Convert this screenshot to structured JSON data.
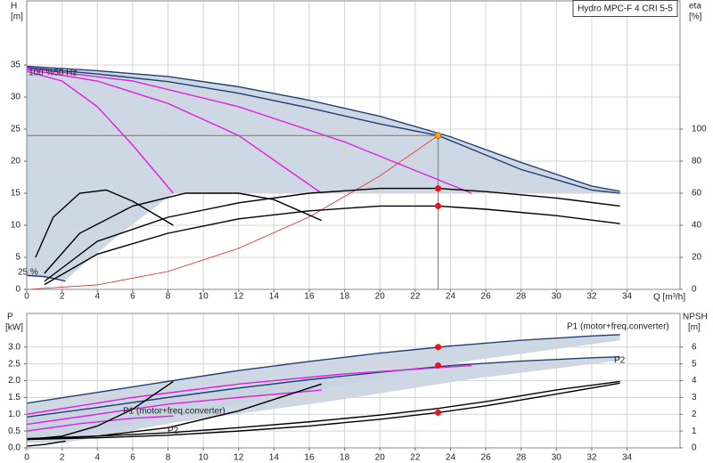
{
  "chart_data": [
    {
      "type": "line",
      "title": "Hydro MPC-F 4 CRI 5-5",
      "ylabel": "H",
      "yunit": "[m]",
      "y2label": "eta",
      "y2unit": "[%]",
      "xlabel": "Q [m³/h]",
      "xlim": [
        0,
        37
      ],
      "ylim": [
        0,
        45
      ],
      "y2lim": [
        0,
        180
      ],
      "grid": true,
      "xticks": [
        0,
        2,
        4,
        6,
        8,
        10,
        12,
        14,
        16,
        18,
        20,
        22,
        24,
        26,
        28,
        30,
        32,
        34
      ],
      "yticks": [
        0,
        5,
        10,
        15,
        20,
        25,
        30,
        35
      ],
      "y2ticks": [
        0,
        20,
        40,
        60,
        80,
        100
      ],
      "annotations": [
        "100 %50 Hz",
        "25 %"
      ],
      "series": [
        {
          "color": "#c8d4e1",
          "fill": true,
          "x": [
            0,
            4,
            8,
            12,
            16,
            20,
            24,
            28,
            32,
            33.6,
            33.6,
            25.2,
            16.7,
            8.3,
            5,
            2.2,
            0
          ],
          "values": [
            34.8,
            34.1,
            33.2,
            31.6,
            29.5,
            27,
            23.8,
            19.8,
            16.1,
            15.3,
            15,
            15,
            15,
            15,
            8,
            1.5,
            2
          ]
        },
        {
          "color": "#1f3f74",
          "x": [
            0,
            4,
            8,
            12,
            16,
            20,
            24,
            28,
            32,
            33.6
          ],
          "values": [
            34.8,
            34.1,
            33.2,
            31.6,
            29.5,
            27,
            23.8,
            19.8,
            16.1,
            15.3
          ]
        },
        {
          "color": "#1f3f74",
          "x": [
            0,
            4,
            8,
            12,
            16,
            20,
            23.3,
            28,
            32,
            33.6
          ],
          "values": [
            34.6,
            33.6,
            32.4,
            30.6,
            28.3,
            25.8,
            24,
            18.7,
            15.5,
            15
          ]
        },
        {
          "color": "#1f3f74",
          "x": [
            0,
            1,
            2.2
          ],
          "values": [
            2.2,
            2,
            1.3
          ]
        },
        {
          "color": "#e020e0",
          "x": [
            0,
            2,
            4,
            6,
            8.3
          ],
          "values": [
            34,
            32.5,
            28.5,
            22.5,
            15
          ]
        },
        {
          "color": "#e020e0",
          "x": [
            0,
            4,
            8,
            12,
            16.7
          ],
          "values": [
            34.3,
            32.5,
            29,
            24,
            15
          ]
        },
        {
          "color": "#e020e0",
          "x": [
            0,
            6,
            12,
            18,
            25.2
          ],
          "values": [
            34.5,
            32.5,
            28.5,
            23,
            15
          ]
        },
        {
          "color": "#ee2222",
          "x": [
            0,
            4,
            8,
            12,
            16,
            20,
            23.3
          ],
          "values": [
            0,
            0.7,
            2.8,
            6.4,
            11.3,
            17.7,
            24
          ]
        },
        {
          "color": "#000000",
          "axis": "y2",
          "x": [
            1,
            4,
            8,
            12,
            16,
            20,
            23.3,
            26,
            30,
            33.6
          ],
          "values": [
            5,
            30,
            45,
            54,
            60,
            63,
            63,
            61,
            57,
            52
          ]
        },
        {
          "color": "#000000",
          "axis": "y2",
          "x": [
            1,
            4,
            8,
            12,
            16,
            20,
            23.3,
            26,
            30,
            33.6
          ],
          "values": [
            3,
            22,
            35,
            44,
            49,
            52,
            52,
            50,
            46,
            41
          ]
        },
        {
          "color": "#000000",
          "axis": "y2",
          "x": [
            0.5,
            1.5,
            3,
            4.5,
            6,
            8.3
          ],
          "values": [
            20,
            45,
            60,
            62,
            55,
            40
          ]
        },
        {
          "color": "#000000",
          "axis": "y2",
          "x": [
            1,
            3,
            6,
            9,
            12,
            14,
            16.7
          ],
          "values": [
            10,
            35,
            52,
            60,
            60,
            56,
            43
          ]
        }
      ],
      "points": [
        {
          "x": 23.3,
          "y": 24,
          "color": "#f5a623",
          "guides": true
        },
        {
          "x": 23.3,
          "y": 63,
          "axis": "y2",
          "color": "#e8141b"
        },
        {
          "x": 23.3,
          "y": 52,
          "axis": "y2",
          "color": "#e8141b"
        }
      ]
    },
    {
      "type": "line",
      "ylabel": "P",
      "yunit": "[kW]",
      "y2label": "NPSH",
      "y2unit": "[m]",
      "xlim": [
        0,
        37
      ],
      "ylim": [
        0,
        4
      ],
      "y2lim": [
        0,
        8
      ],
      "grid": true,
      "xticks": [
        0,
        2,
        4,
        6,
        8,
        10,
        12,
        14,
        16,
        18,
        20,
        22,
        24,
        26,
        28,
        30,
        32,
        34
      ],
      "yticks": [
        {
          "value": 0,
          "label": "0.0"
        },
        0.5,
        {
          "value": 1,
          "label": "1.0"
        },
        1.5,
        {
          "value": 2,
          "label": "2.0"
        },
        2.5,
        {
          "value": 3,
          "label": "3.0"
        }
      ],
      "y2ticks": [
        0,
        1,
        2,
        3,
        4,
        5,
        6
      ],
      "annotations": [
        "P1 (motor+freq.converter)",
        "P2",
        "P1 (motor+freq.converter)",
        "P2"
      ],
      "series": [
        {
          "color": "#c8d4e1",
          "fill": true,
          "x": [
            0,
            8,
            16,
            24,
            33.6,
            33.6,
            25.2,
            16.7,
            8.3,
            2.2,
            0
          ],
          "values": [
            1.33,
            1.98,
            2.57,
            3.03,
            3.37,
            3.2,
            2.6,
            1.75,
            0.95,
            0.3,
            0.3
          ]
        },
        {
          "color": "#c8d4e1",
          "fill": true,
          "x": [
            0,
            8,
            16,
            24,
            33.6,
            33.6,
            25.2,
            16.7,
            8.3,
            2.2,
            0
          ],
          "values": [
            0.92,
            1.5,
            2.03,
            2.45,
            2.71,
            2.6,
            2.05,
            1.35,
            0.75,
            0.15,
            0.15
          ]
        },
        {
          "color": "#1f3f74",
          "x": [
            0,
            4,
            8,
            12,
            16,
            20,
            24,
            28,
            32,
            33.6
          ],
          "values": [
            1.33,
            1.65,
            1.98,
            2.3,
            2.57,
            2.82,
            3.03,
            3.2,
            3.33,
            3.37
          ]
        },
        {
          "color": "#1f3f74",
          "x": [
            0,
            4,
            8,
            12,
            16,
            20,
            24,
            28,
            32,
            33.6
          ],
          "values": [
            0.92,
            1.2,
            1.5,
            1.78,
            2.03,
            2.25,
            2.45,
            2.58,
            2.68,
            2.71
          ]
        },
        {
          "color": "#e020e0",
          "x": [
            0,
            4,
            8,
            12,
            16.7
          ],
          "values": [
            0.7,
            1.0,
            1.3,
            1.5,
            1.72
          ]
        },
        {
          "color": "#e020e0",
          "x": [
            0,
            6,
            12,
            18,
            25.2
          ],
          "values": [
            1.0,
            1.5,
            1.9,
            2.2,
            2.45
          ]
        },
        {
          "color": "#e020e0",
          "x": [
            0,
            3,
            6,
            8.3
          ],
          "values": [
            0.5,
            0.72,
            0.88,
            0.95
          ]
        },
        {
          "color": "#000000",
          "axis": "y2",
          "x": [
            0,
            4,
            8,
            12,
            16,
            20,
            23.3,
            26,
            30,
            33.6
          ],
          "values": [
            0.5,
            0.6,
            0.75,
            1.0,
            1.3,
            1.7,
            2.1,
            2.5,
            3.2,
            3.85
          ]
        },
        {
          "color": "#000000",
          "axis": "y2",
          "x": [
            0,
            4,
            8,
            12,
            16,
            20,
            23.3,
            26,
            30,
            33.6
          ],
          "values": [
            0.55,
            0.7,
            0.9,
            1.2,
            1.55,
            1.95,
            2.35,
            2.75,
            3.45,
            3.95
          ]
        },
        {
          "color": "#000000",
          "axis": "y2",
          "x": [
            0,
            2,
            4,
            6,
            8.3
          ],
          "values": [
            0.5,
            0.7,
            1.3,
            2.3,
            3.95
          ]
        },
        {
          "color": "#000000",
          "axis": "y2",
          "x": [
            0,
            4,
            8,
            12,
            16.7
          ],
          "values": [
            0.5,
            0.7,
            1.2,
            2.2,
            3.8
          ]
        },
        {
          "color": "#000000",
          "axis": "y2",
          "x": [
            0,
            1,
            2.2
          ],
          "values": [
            0.1,
            0.2,
            0.4
          ]
        }
      ],
      "points": [
        {
          "x": 23.3,
          "y": 3.0,
          "color": "#e8141b"
        },
        {
          "x": 23.3,
          "y": 2.45,
          "color": "#e8141b"
        },
        {
          "x": 23.3,
          "y": 2.1,
          "axis": "y2",
          "color": "#e8141b"
        }
      ]
    }
  ]
}
